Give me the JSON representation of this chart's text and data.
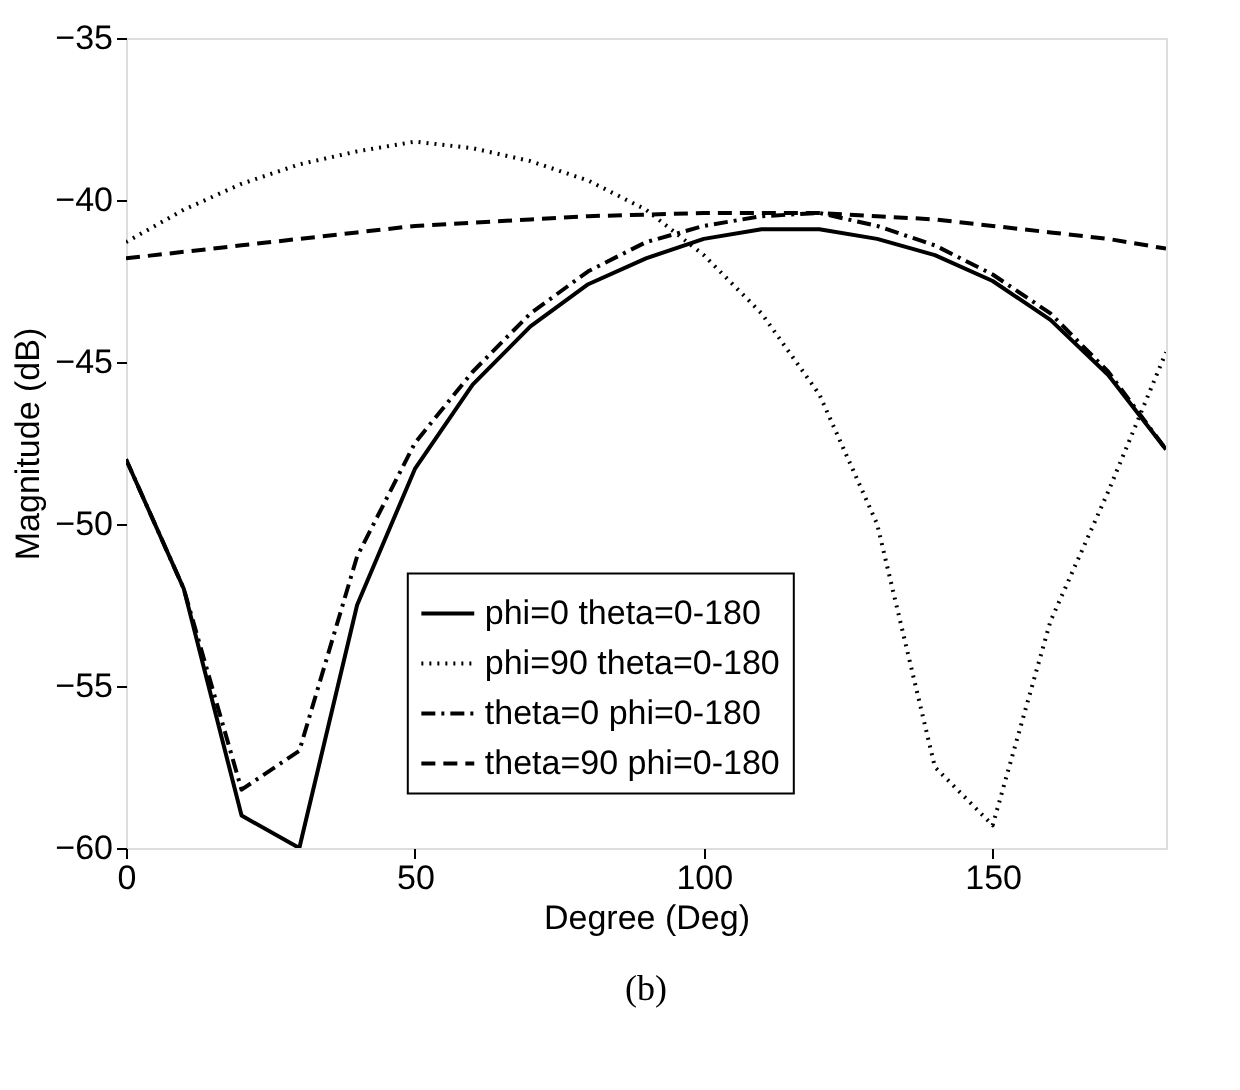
{
  "chart_data": {
    "type": "line",
    "xlabel": "Degree (Deg)",
    "ylabel": "Magnitude (dB)",
    "x": [
      0,
      10,
      20,
      30,
      40,
      50,
      60,
      70,
      80,
      90,
      100,
      110,
      120,
      130,
      140,
      150,
      160,
      170,
      180
    ],
    "series": [
      {
        "name": "phi=0 theta=0-180",
        "color": "#000000",
        "line_style": "solid",
        "values": [
          -48,
          -52,
          -59,
          -60,
          -52.5,
          -48.3,
          -45.7,
          -43.9,
          -42.6,
          -41.8,
          -41.2,
          -40.9,
          -40.9,
          -41.2,
          -41.7,
          -42.5,
          -43.7,
          -45.4,
          -47.7
        ]
      },
      {
        "name": "phi=90 theta=0-180",
        "color": "#000000",
        "line_style": "dotted",
        "values": [
          -41.3,
          -40.3,
          -39.5,
          -38.9,
          -38.5,
          -38.2,
          -38.4,
          -38.8,
          -39.4,
          -40.3,
          -41.7,
          -43.5,
          -46,
          -50,
          -57.5,
          -59.3,
          -53,
          -49,
          -44.7
        ]
      },
      {
        "name": "theta=0 phi=0-180",
        "color": "#000000",
        "line_style": "dashdot",
        "values": [
          -48,
          -52,
          -58.2,
          -57,
          -51,
          -47.5,
          -45.3,
          -43.5,
          -42.2,
          -41.3,
          -40.8,
          -40.5,
          -40.4,
          -40.8,
          -41.4,
          -42.3,
          -43.5,
          -45.3,
          -47.7
        ]
      },
      {
        "name": "theta=90 phi=0-180",
        "color": "#000000",
        "line_style": "dashed",
        "values": [
          -41.8,
          -41.6,
          -41.4,
          -41.2,
          -41.0,
          -40.8,
          -40.7,
          -40.6,
          -40.5,
          -40.45,
          -40.4,
          -40.4,
          -40.4,
          -40.5,
          -40.6,
          -40.8,
          -41.0,
          -41.2,
          -41.5
        ]
      }
    ],
    "xlim": [
      0,
      180
    ],
    "xticks": [
      0,
      50,
      100,
      150
    ],
    "ylim": [
      -60,
      -35
    ],
    "yticks": [
      -60,
      -55,
      -50,
      -45,
      -40,
      -35
    ],
    "grid": false,
    "legend": "bottom",
    "marker": "none",
    "annotations": [
      "(b)"
    ]
  }
}
